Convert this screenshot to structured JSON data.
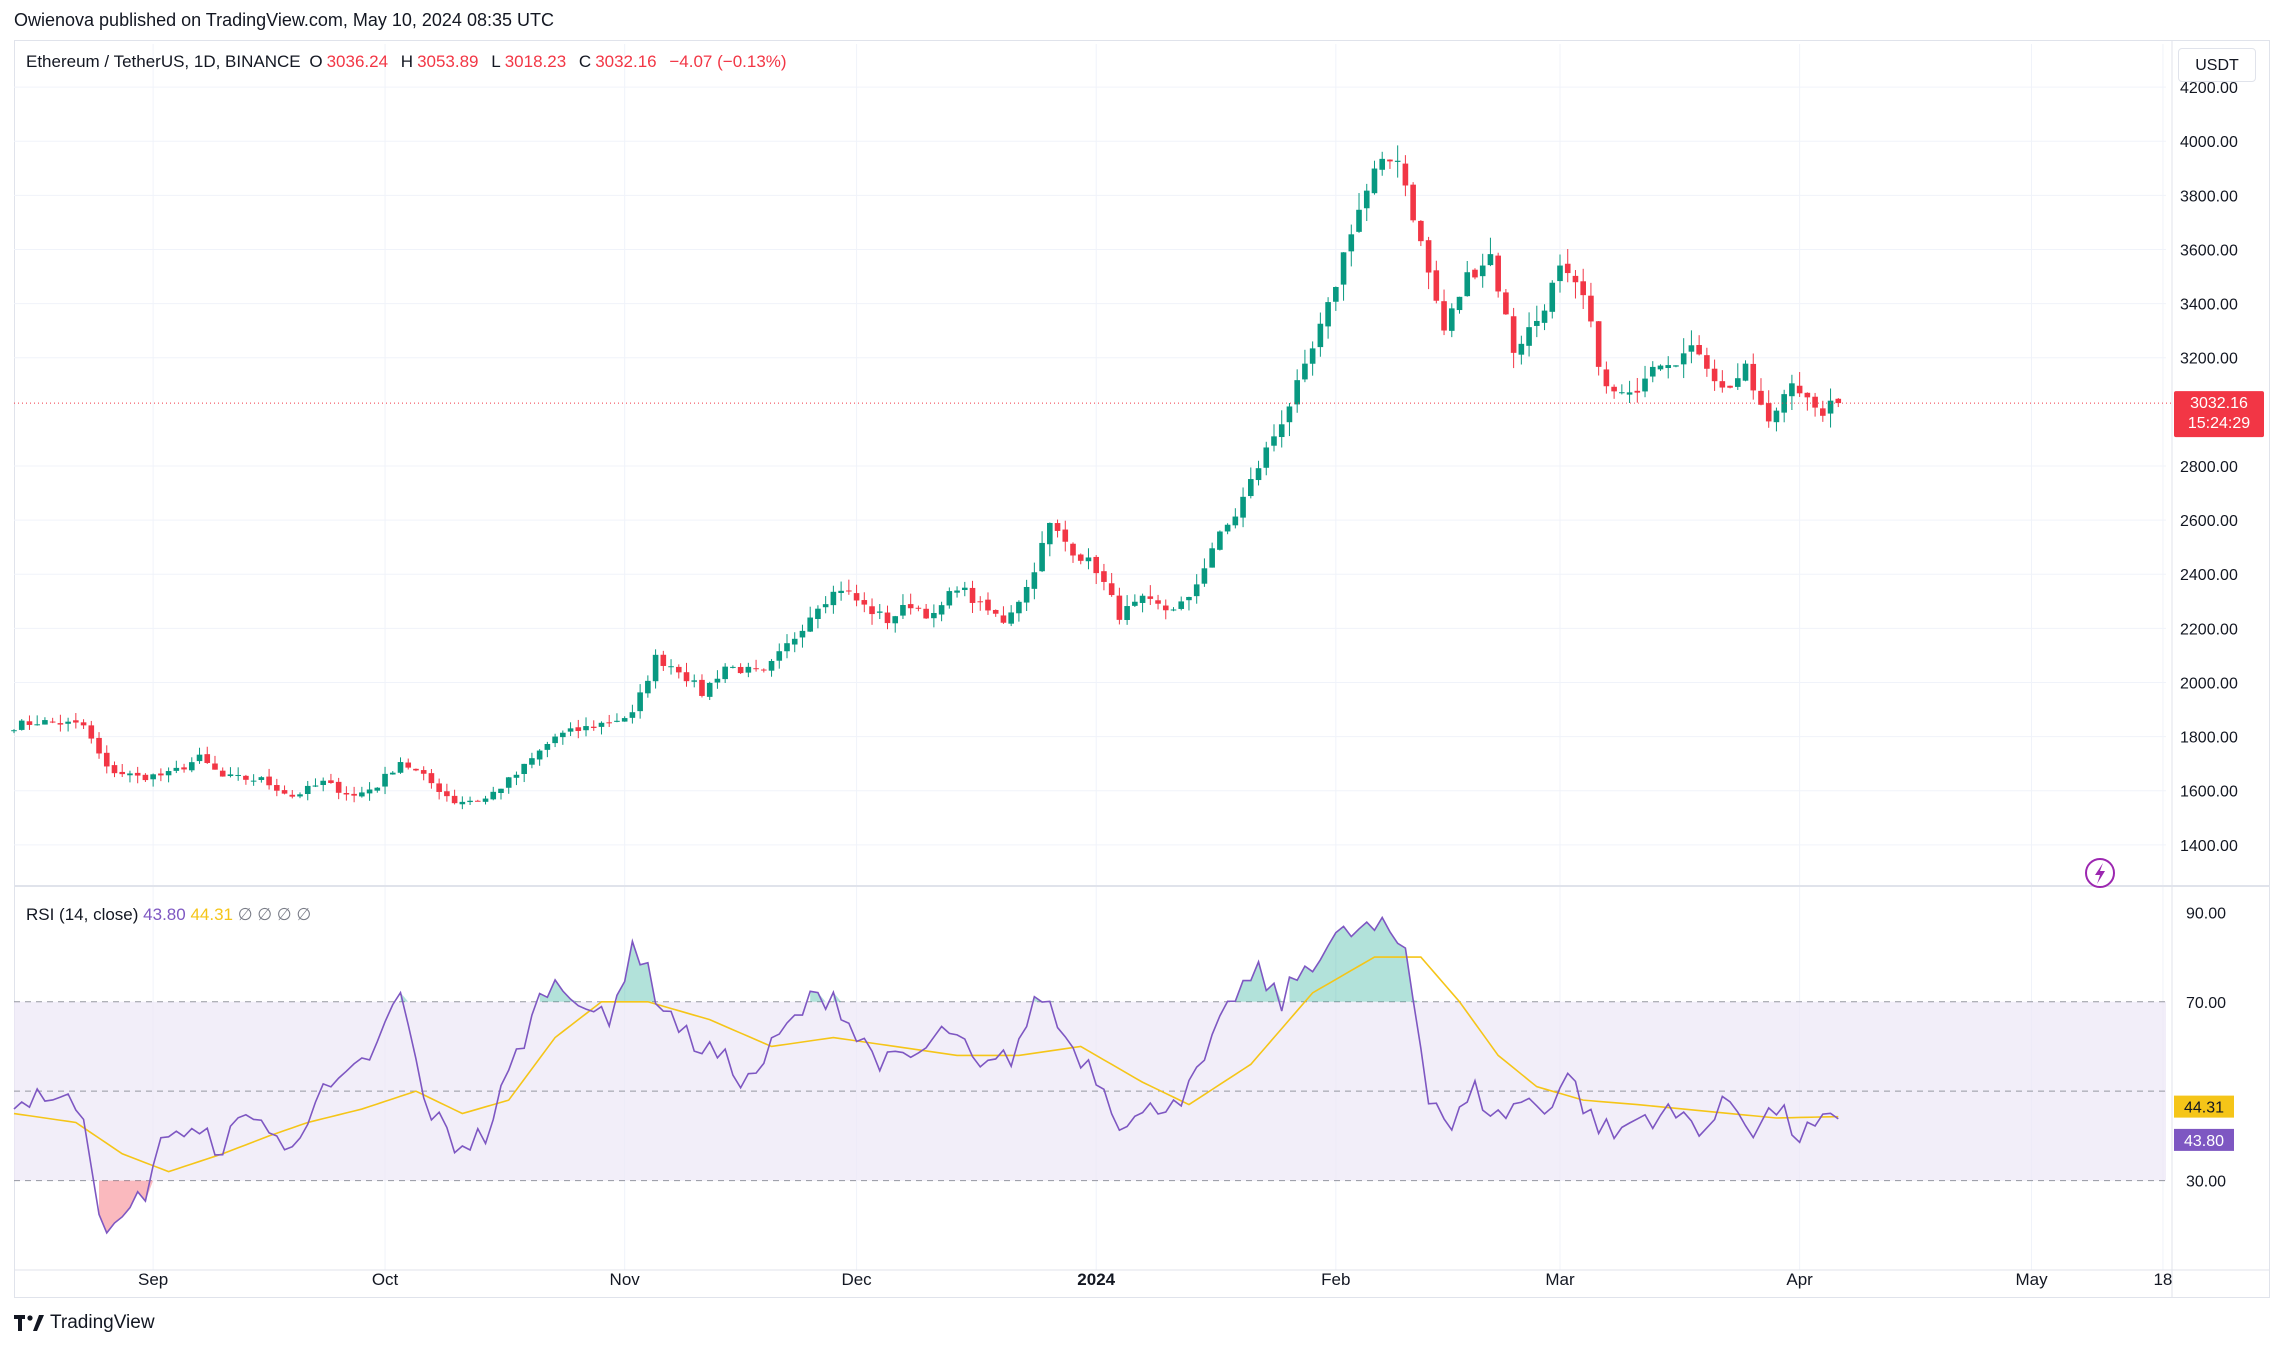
{
  "header": {
    "publisher_line": "Owienova published on TradingView.com, May 10, 2024 08:35 UTC"
  },
  "legend": {
    "symbol": "Ethereum / TetherUS, 1D, BINANCE",
    "open_label": "O",
    "open": "3036.24",
    "high_label": "H",
    "high": "3053.89",
    "low_label": "L",
    "low": "3018.23",
    "close_label": "C",
    "close": "3032.16",
    "change": "−4.07 (−0.13%)"
  },
  "price_axis": {
    "unit": "USDT",
    "last_price": "3032.16",
    "countdown": "15:24:29"
  },
  "rsi_legend": {
    "title": "RSI (14, close)",
    "rsi": "43.80",
    "ma": "44.31",
    "extras": "∅ ∅ ∅ ∅"
  },
  "brand": {
    "name": "TradingView"
  },
  "colors": {
    "up": "#089981",
    "down": "#f23645",
    "rsi": "#7e57c2",
    "rsi_ma": "#f5c518",
    "rsi_band": "#ede7f6",
    "grid": "#f0f3fa",
    "axis_text": "#131722"
  },
  "chart_data": [
    {
      "type": "candlestick",
      "title": "Ethereum / TetherUS, 1D, BINANCE",
      "ylabel": "USDT",
      "ylim": [
        1270,
        4300
      ],
      "y_ticks": [
        "4200.00",
        "4000.00",
        "3800.00",
        "3600.00",
        "3400.00",
        "3200.00",
        "2800.00",
        "2600.00",
        "2400.00",
        "2200.00",
        "2000.00",
        "1800.00",
        "1600.00",
        "1400.00"
      ],
      "x_ticks": [
        {
          "label": "Sep",
          "day": 18
        },
        {
          "label": "Oct",
          "day": 48
        },
        {
          "label": "Nov",
          "day": 79
        },
        {
          "label": "Dec",
          "day": 109
        },
        {
          "label": "2024",
          "day": 140
        },
        {
          "label": "Feb",
          "day": 171
        },
        {
          "label": "Mar",
          "day": 200
        },
        {
          "label": "Apr",
          "day": 231
        },
        {
          "label": "May",
          "day": 261
        },
        {
          "label": "18",
          "day": 278
        }
      ],
      "close_anchors": [
        [
          0,
          1840
        ],
        [
          3,
          1855
        ],
        [
          6,
          1850
        ],
        [
          9,
          1840
        ],
        [
          12,
          1680
        ],
        [
          16,
          1650
        ],
        [
          20,
          1660
        ],
        [
          24,
          1720
        ],
        [
          27,
          1650
        ],
        [
          32,
          1640
        ],
        [
          36,
          1580
        ],
        [
          40,
          1630
        ],
        [
          44,
          1580
        ],
        [
          47,
          1620
        ],
        [
          50,
          1710
        ],
        [
          53,
          1650
        ],
        [
          57,
          1560
        ],
        [
          61,
          1570
        ],
        [
          65,
          1660
        ],
        [
          70,
          1800
        ],
        [
          75,
          1840
        ],
        [
          80,
          1880
        ],
        [
          83,
          2090
        ],
        [
          86,
          2050
        ],
        [
          89,
          1960
        ],
        [
          92,
          2060
        ],
        [
          97,
          2030
        ],
        [
          101,
          2170
        ],
        [
          104,
          2290
        ],
        [
          107,
          2350
        ],
        [
          110,
          2280
        ],
        [
          113,
          2230
        ],
        [
          116,
          2290
        ],
        [
          119,
          2240
        ],
        [
          122,
          2360
        ],
        [
          125,
          2280
        ],
        [
          128,
          2230
        ],
        [
          131,
          2350
        ],
        [
          134,
          2580
        ],
        [
          137,
          2490
        ],
        [
          140,
          2420
        ],
        [
          143,
          2250
        ],
        [
          146,
          2300
        ],
        [
          149,
          2270
        ],
        [
          152,
          2300
        ],
        [
          155,
          2500
        ],
        [
          158,
          2620
        ],
        [
          161,
          2800
        ],
        [
          164,
          2970
        ],
        [
          167,
          3150
        ],
        [
          170,
          3380
        ],
        [
          173,
          3680
        ],
        [
          176,
          3880
        ],
        [
          179,
          3950
        ],
        [
          182,
          3620
        ],
        [
          185,
          3300
        ],
        [
          188,
          3500
        ],
        [
          191,
          3580
        ],
        [
          194,
          3230
        ],
        [
          197,
          3340
        ],
        [
          200,
          3520
        ],
        [
          203,
          3420
        ],
        [
          206,
          3080
        ],
        [
          209,
          3050
        ],
        [
          212,
          3190
        ],
        [
          215,
          3200
        ],
        [
          218,
          3230
        ],
        [
          221,
          3080
        ],
        [
          224,
          3150
        ],
        [
          227,
          2950
        ],
        [
          230,
          3130
        ],
        [
          233,
          2990
        ],
        [
          236,
          3032.16
        ]
      ],
      "last_price": 3032.16,
      "candles": 237
    },
    {
      "type": "line",
      "title": "RSI (14, close)",
      "ylim": [
        10,
        95
      ],
      "y_ticks": [
        "90.00",
        "70.00",
        "30.00"
      ],
      "band": [
        30,
        70
      ],
      "series": [
        {
          "name": "RSI",
          "anchors": [
            [
              0,
              46
            ],
            [
              3,
              50
            ],
            [
              6,
              48
            ],
            [
              9,
              46
            ],
            [
              11,
              24
            ],
            [
              13,
              18
            ],
            [
              17,
              28
            ],
            [
              20,
              42
            ],
            [
              23,
              40
            ],
            [
              27,
              38
            ],
            [
              31,
              46
            ],
            [
              35,
              36
            ],
            [
              39,
              48
            ],
            [
              43,
              52
            ],
            [
              47,
              60
            ],
            [
              50,
              72
            ],
            [
              53,
              48
            ],
            [
              57,
              38
            ],
            [
              61,
              40
            ],
            [
              65,
              58
            ],
            [
              69,
              74
            ],
            [
              73,
              72
            ],
            [
              77,
              64
            ],
            [
              80,
              84
            ],
            [
              83,
              72
            ],
            [
              87,
              62
            ],
            [
              91,
              58
            ],
            [
              95,
              52
            ],
            [
              99,
              62
            ],
            [
              103,
              70
            ],
            [
              106,
              72
            ],
            [
              109,
              62
            ],
            [
              113,
              56
            ],
            [
              117,
              58
            ],
            [
              121,
              64
            ],
            [
              125,
              54
            ],
            [
              129,
              58
            ],
            [
              133,
              72
            ],
            [
              136,
              62
            ],
            [
              140,
              54
            ],
            [
              143,
              44
            ],
            [
              146,
              44
            ],
            [
              149,
              48
            ],
            [
              152,
              50
            ],
            [
              155,
              60
            ],
            [
              158,
              72
            ],
            [
              161,
              76
            ],
            [
              164,
              70
            ],
            [
              167,
              78
            ],
            [
              171,
              84
            ],
            [
              174,
              86
            ],
            [
              177,
              86
            ],
            [
              180,
              82
            ],
            [
              183,
              50
            ],
            [
              186,
              42
            ],
            [
              189,
              50
            ],
            [
              192,
              44
            ],
            [
              195,
              48
            ],
            [
              198,
              46
            ],
            [
              201,
              54
            ],
            [
              204,
              44
            ],
            [
              207,
              40
            ],
            [
              210,
              44
            ],
            [
              213,
              45
            ],
            [
              216,
              44
            ],
            [
              219,
              42
            ],
            [
              222,
              48
            ],
            [
              225,
              42
            ],
            [
              228,
              46
            ],
            [
              231,
              40
            ],
            [
              236,
              43.8
            ]
          ]
        },
        {
          "name": "RSI-based MA",
          "anchors": [
            [
              0,
              45
            ],
            [
              8,
              43
            ],
            [
              14,
              36
            ],
            [
              20,
              32
            ],
            [
              27,
              36
            ],
            [
              33,
              40
            ],
            [
              38,
              43
            ],
            [
              45,
              46
            ],
            [
              52,
              50
            ],
            [
              58,
              45
            ],
            [
              64,
              48
            ],
            [
              70,
              62
            ],
            [
              76,
              70
            ],
            [
              82,
              70
            ],
            [
              90,
              66
            ],
            [
              98,
              60
            ],
            [
              106,
              62
            ],
            [
              114,
              60
            ],
            [
              122,
              58
            ],
            [
              130,
              58
            ],
            [
              138,
              60
            ],
            [
              146,
              52
            ],
            [
              152,
              47
            ],
            [
              160,
              56
            ],
            [
              168,
              72
            ],
            [
              176,
              80
            ],
            [
              182,
              80
            ],
            [
              187,
              70
            ],
            [
              192,
              58
            ],
            [
              197,
              51
            ],
            [
              203,
              48
            ],
            [
              210,
              47
            ],
            [
              216,
              46
            ],
            [
              222,
              45
            ],
            [
              228,
              44
            ],
            [
              236,
              44.31
            ]
          ]
        }
      ],
      "last_rsi": 43.8,
      "last_ma": 44.31
    }
  ]
}
